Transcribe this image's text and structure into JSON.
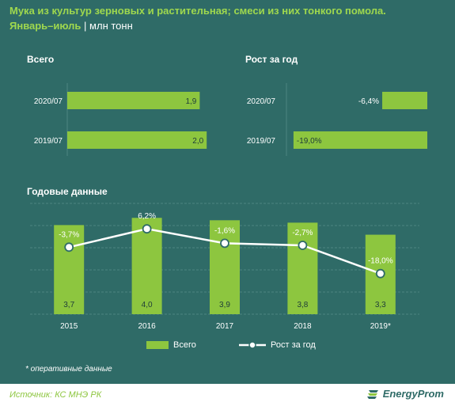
{
  "header": {
    "title": "Мука из культур зерновых и растительная; смеси из них тонкого помола.",
    "period": "Январь–июль",
    "separator": " | ",
    "unit": "млн тонн"
  },
  "chart_data": [
    {
      "type": "bar",
      "orientation": "horizontal",
      "title": "Всего",
      "categories": [
        "2020/07",
        "2019/07"
      ],
      "values": [
        1.9,
        2.0
      ],
      "labels": [
        "1,9",
        "2,0"
      ],
      "xlim": [
        0,
        2.1
      ]
    },
    {
      "type": "bar",
      "orientation": "horizontal",
      "title": "Рост за год",
      "categories": [
        "2020/07",
        "2019/07"
      ],
      "values": [
        -6.4,
        -19.0
      ],
      "labels": [
        "-6,4%",
        "-19,0%"
      ],
      "xlim": [
        -20,
        0
      ]
    },
    {
      "type": "bar+line",
      "title": "Годовые данные",
      "categories": [
        "2015",
        "2016",
        "2017",
        "2018",
        "2019*"
      ],
      "series": [
        {
          "name": "Всего",
          "type": "bar",
          "values": [
            3.7,
            4.0,
            3.9,
            3.8,
            3.3
          ],
          "labels": [
            "3,7",
            "4,0",
            "3,9",
            "3,8",
            "3,3"
          ]
        },
        {
          "name": "Рост за год",
          "type": "line",
          "values": [
            -3.7,
            6.2,
            -1.6,
            -2.7,
            -18.0
          ],
          "labels": [
            "-3,7%",
            "6,2%",
            "-1,6%",
            "-2,7%",
            "-18,0%"
          ]
        }
      ],
      "ylim_bars": [
        0,
        4.6
      ],
      "ylim_line": [
        -40,
        20
      ],
      "grid": true,
      "legend": "bottom"
    }
  ],
  "note": "* оперативные данные",
  "footer": {
    "source": "Источник: КС МНЭ РК",
    "logo": "EnergyProm"
  },
  "colors": {
    "background": "#2f6b67",
    "bar": "#8dc63f",
    "title": "#9fd84e",
    "line": "#ffffff",
    "grid": "#4c8580"
  }
}
